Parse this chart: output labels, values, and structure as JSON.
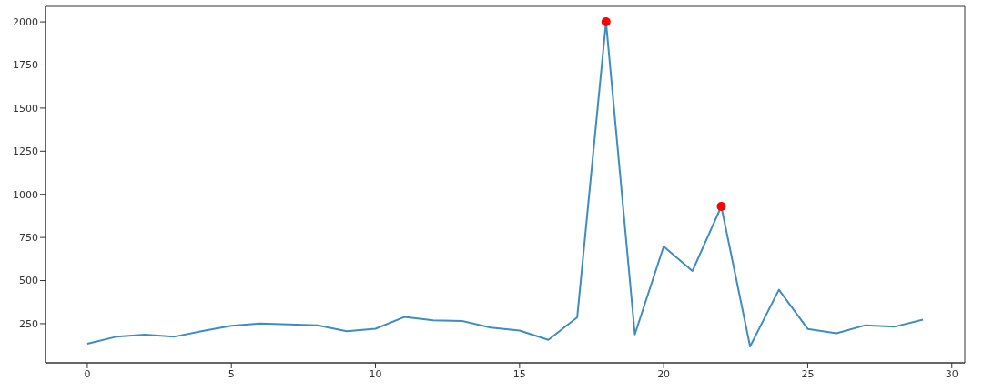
{
  "chart_data": {
    "type": "line",
    "x": [
      0,
      1,
      2,
      3,
      4,
      5,
      6,
      7,
      8,
      9,
      10,
      11,
      12,
      13,
      14,
      15,
      16,
      17,
      18,
      19,
      20,
      21,
      22,
      23,
      24,
      25,
      26,
      27,
      28,
      29
    ],
    "series": [
      {
        "color": "#3f8cc4",
        "values": [
          134,
          174,
          186,
          174,
          208,
          238,
          251,
          246,
          240,
          206,
          221,
          289,
          270,
          266,
          227,
          210,
          156,
          287,
          2000,
          188,
          698,
          556,
          930,
          118,
          447,
          220,
          194,
          241,
          232,
          273
        ]
      },
      {
        "type": "scatter",
        "color": "#ff0000",
        "marker": "circle",
        "x": [
          18,
          22
        ],
        "values": [
          2000,
          930
        ]
      }
    ],
    "xlim": [
      -1.45,
      30.45
    ],
    "xticks": [
      0,
      5,
      10,
      15,
      20,
      25,
      30
    ],
    "ylim": [
      23,
      2090
    ],
    "yticks": [
      250,
      500,
      750,
      1000,
      1250,
      1500,
      1750,
      2000
    ],
    "grid": false,
    "marker": "none",
    "line_style": "solid"
  }
}
